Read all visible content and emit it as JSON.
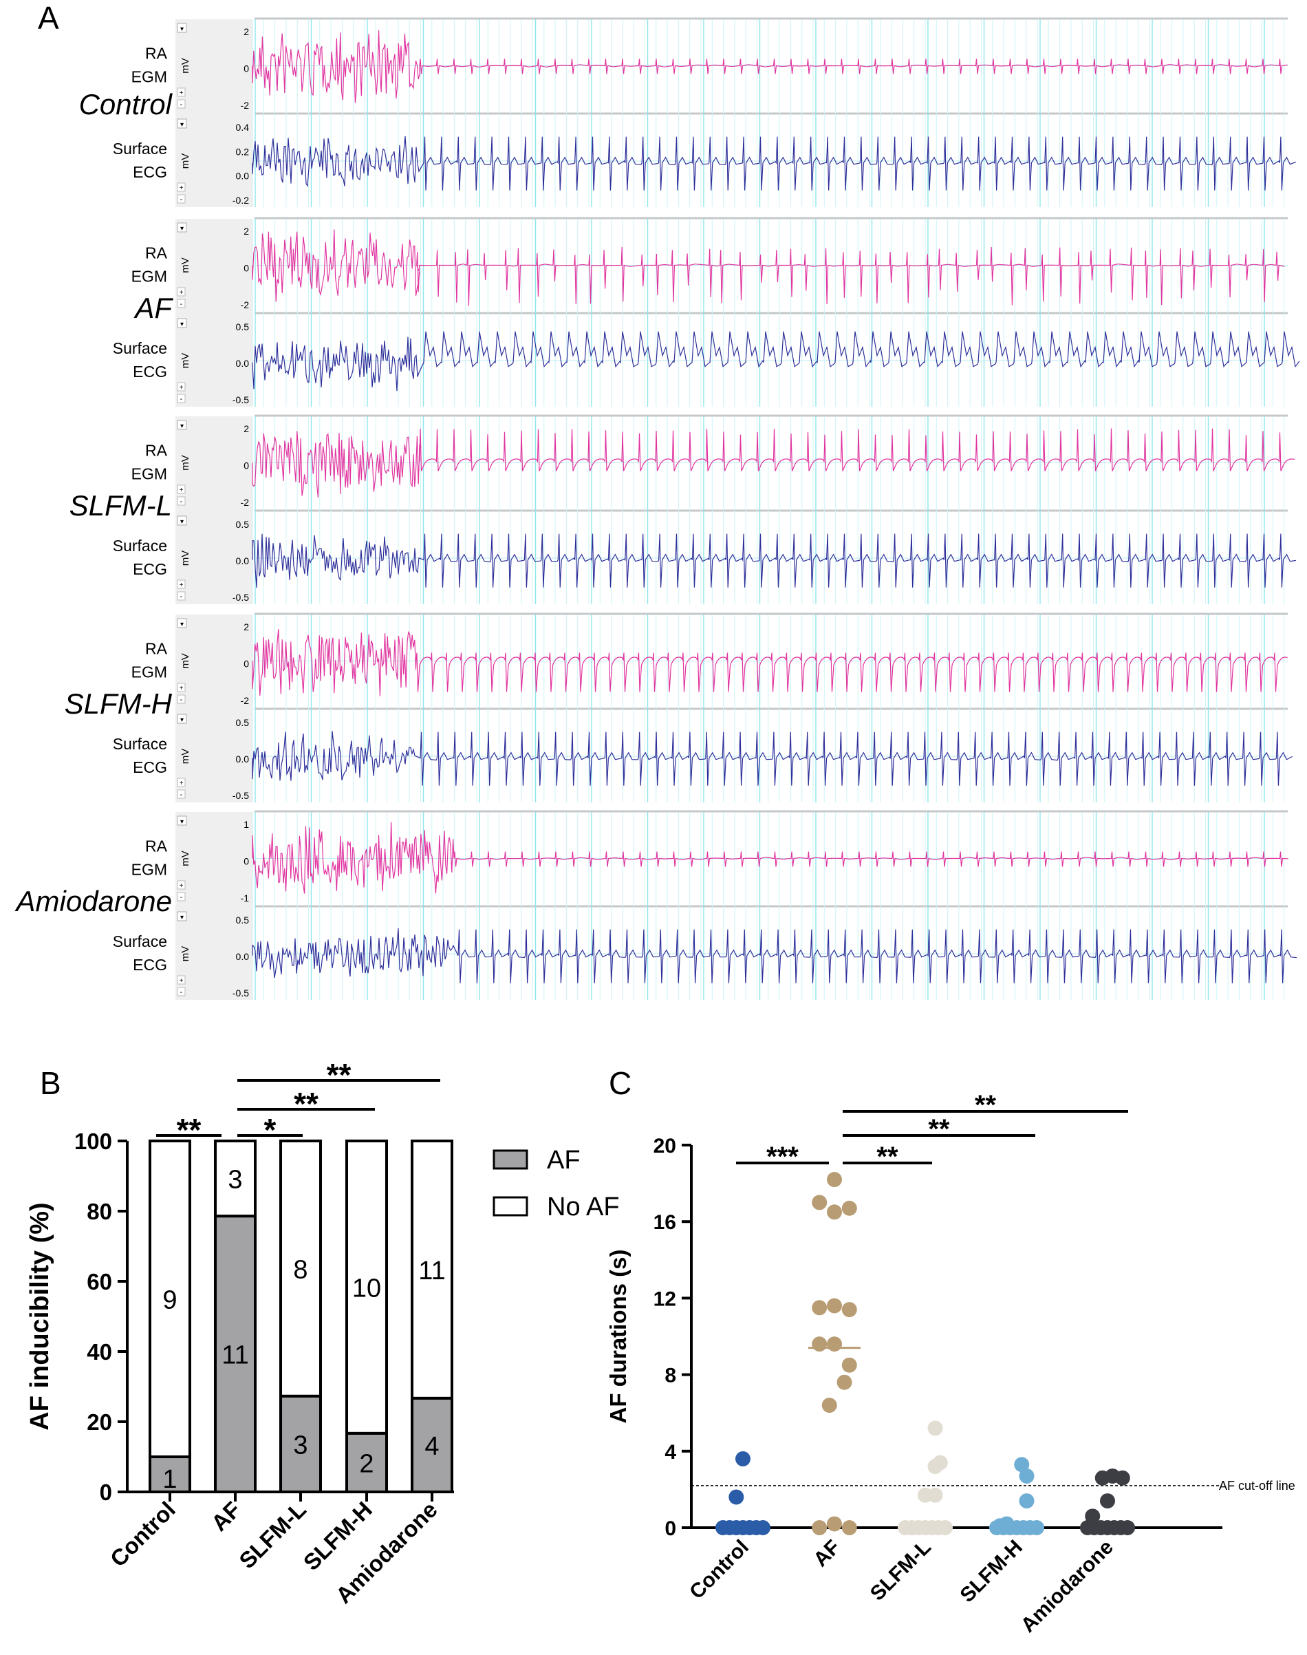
{
  "panel_a": {
    "letter": "A",
    "unit_label": "mV",
    "channels": {
      "ra": {
        "line1": "RA",
        "line2": "EGM",
        "color": "#e0349f"
      },
      "ecg": {
        "line1": "Surface",
        "line2": "ECG",
        "color": "#2e2f9a"
      }
    },
    "groups": [
      {
        "name": "Control",
        "ra_ticks": [
          "2",
          "0",
          "-2"
        ],
        "ecg_ticks": [
          "0.4",
          "0.2",
          "0.0",
          "-0.2"
        ],
        "ra_after": "small",
        "ecg_after": "sharp"
      },
      {
        "name": "AF",
        "ra_ticks": [
          "2",
          "0",
          "-2"
        ],
        "ecg_ticks": [
          "0.5",
          "0.0",
          "-0.5"
        ],
        "ra_after": "irregular",
        "ecg_after": "wide"
      },
      {
        "name": "SLFM-L",
        "ra_ticks": [
          "2",
          "0",
          "-2"
        ],
        "ecg_ticks": [
          "0.5",
          "0.0",
          "-0.5"
        ],
        "ra_after": "up",
        "ecg_after": "sharp"
      },
      {
        "name": "SLFM-H",
        "ra_ticks": [
          "2",
          "0",
          "-2"
        ],
        "ecg_ticks": [
          "0.5",
          "0.0",
          "-0.5"
        ],
        "ra_after": "recovery",
        "ecg_after": "sharp"
      },
      {
        "name": "Amiodarone",
        "ra_ticks": [
          "1",
          "0",
          "-1"
        ],
        "ecg_ticks": [
          "0.5",
          "0.0",
          "-0.5"
        ],
        "ra_after": "small",
        "ecg_after": "sharp"
      }
    ]
  },
  "chart_data": [
    {
      "type": "bar",
      "panel_letter": "B",
      "stacked": true,
      "categories": [
        "Control",
        "AF",
        "SLFM-L",
        "SLFM-H",
        "Amiodarone"
      ],
      "series": [
        {
          "name": "AF",
          "values": [
            10,
            78.6,
            27.3,
            16.7,
            26.7
          ],
          "counts": [
            "1",
            "11",
            "3",
            "2",
            "4"
          ],
          "color": "#a3a3a6"
        },
        {
          "name": "No AF",
          "values": [
            90,
            21.4,
            72.7,
            83.3,
            73.3
          ],
          "counts": [
            "9",
            "3",
            "8",
            "10",
            "11"
          ],
          "color": "#ffffff"
        }
      ],
      "ylabel": "AF inducibility (%)",
      "ylim": [
        0,
        100
      ],
      "yticks": [
        "0",
        "20",
        "40",
        "60",
        "80",
        "100"
      ],
      "legend": "right",
      "significance": [
        {
          "from": 0,
          "to": 1,
          "label": "**"
        },
        {
          "from": 1,
          "to": 2,
          "label": "*"
        },
        {
          "from": 1,
          "to": 3,
          "label": "**"
        },
        {
          "from": 1,
          "to": 4,
          "label": "**"
        }
      ]
    },
    {
      "type": "scatter",
      "panel_letter": "C",
      "categories": [
        "Control",
        "AF",
        "SLFM-L",
        "SLFM-H",
        "Amiodarone"
      ],
      "ylabel": "AF durations (s)",
      "ylim": [
        0,
        20
      ],
      "yticks": [
        "0",
        "4",
        "8",
        "12",
        "16",
        "20"
      ],
      "cutoff": {
        "value": 2.2,
        "label": "AF cut-off line"
      },
      "groups": [
        {
          "name": "Control",
          "color": "#2b5ca8",
          "median": 0,
          "points": [
            [
              -0.6,
              0
            ],
            [
              -0.4,
              0
            ],
            [
              -0.2,
              0
            ],
            [
              0,
              0
            ],
            [
              0.2,
              0
            ],
            [
              0.4,
              0
            ],
            [
              0.6,
              0
            ],
            [
              -0.2,
              1.6
            ],
            [
              0,
              3.6
            ]
          ]
        },
        {
          "name": "AF",
          "color": "#b89c73",
          "median": 9.4,
          "points": [
            [
              -0.45,
              17.0
            ],
            [
              0,
              18.2
            ],
            [
              0.45,
              16.7
            ],
            [
              0,
              16.5
            ],
            [
              -0.45,
              11.5
            ],
            [
              0.45,
              11.4
            ],
            [
              0,
              11.6
            ],
            [
              -0.45,
              9.6
            ],
            [
              0.45,
              8.5
            ],
            [
              0,
              9.6
            ],
            [
              0.3,
              7.6
            ],
            [
              -0.15,
              6.4
            ],
            [
              -0.45,
              0
            ],
            [
              0.45,
              0
            ],
            [
              0,
              0.2
            ]
          ]
        },
        {
          "name": "SLFM-L",
          "color": "#e2ddd2",
          "points": [
            [
              -0.6,
              0
            ],
            [
              -0.4,
              0
            ],
            [
              -0.2,
              0
            ],
            [
              0,
              0
            ],
            [
              0.2,
              0
            ],
            [
              0.4,
              0
            ],
            [
              0.6,
              0
            ],
            [
              0,
              1.7
            ],
            [
              0.3,
              1.7
            ],
            [
              0.3,
              3.2
            ],
            [
              0.45,
              3.4
            ],
            [
              0.3,
              5.2
            ]
          ]
        },
        {
          "name": "SLFM-H",
          "color": "#6eaed4",
          "points": [
            [
              -0.6,
              0
            ],
            [
              -0.4,
              0
            ],
            [
              -0.2,
              0
            ],
            [
              0,
              0
            ],
            [
              0.2,
              0
            ],
            [
              0.4,
              0
            ],
            [
              0.6,
              0
            ],
            [
              -0.3,
              0.2
            ],
            [
              0.3,
              1.4
            ],
            [
              0.3,
              2.7
            ],
            [
              0.15,
              3.3
            ],
            [
              -0.5,
              0.1
            ]
          ]
        },
        {
          "name": "Amiodarone",
          "color": "#3c3e44",
          "points": [
            [
              -0.6,
              0
            ],
            [
              -0.4,
              0
            ],
            [
              -0.2,
              0
            ],
            [
              0,
              0
            ],
            [
              0.2,
              0
            ],
            [
              0.4,
              0
            ],
            [
              0.6,
              0
            ],
            [
              -0.45,
              0.6
            ],
            [
              0,
              1.4
            ],
            [
              -0.15,
              2.6
            ],
            [
              0.15,
              2.7
            ],
            [
              0.45,
              2.6
            ]
          ]
        }
      ],
      "significance": [
        {
          "from": 0,
          "to": 1,
          "label": "***"
        },
        {
          "from": 1,
          "to": 2,
          "label": "**"
        },
        {
          "from": 1,
          "to": 3,
          "label": "**"
        },
        {
          "from": 1,
          "to": 4,
          "label": "**"
        }
      ]
    }
  ]
}
